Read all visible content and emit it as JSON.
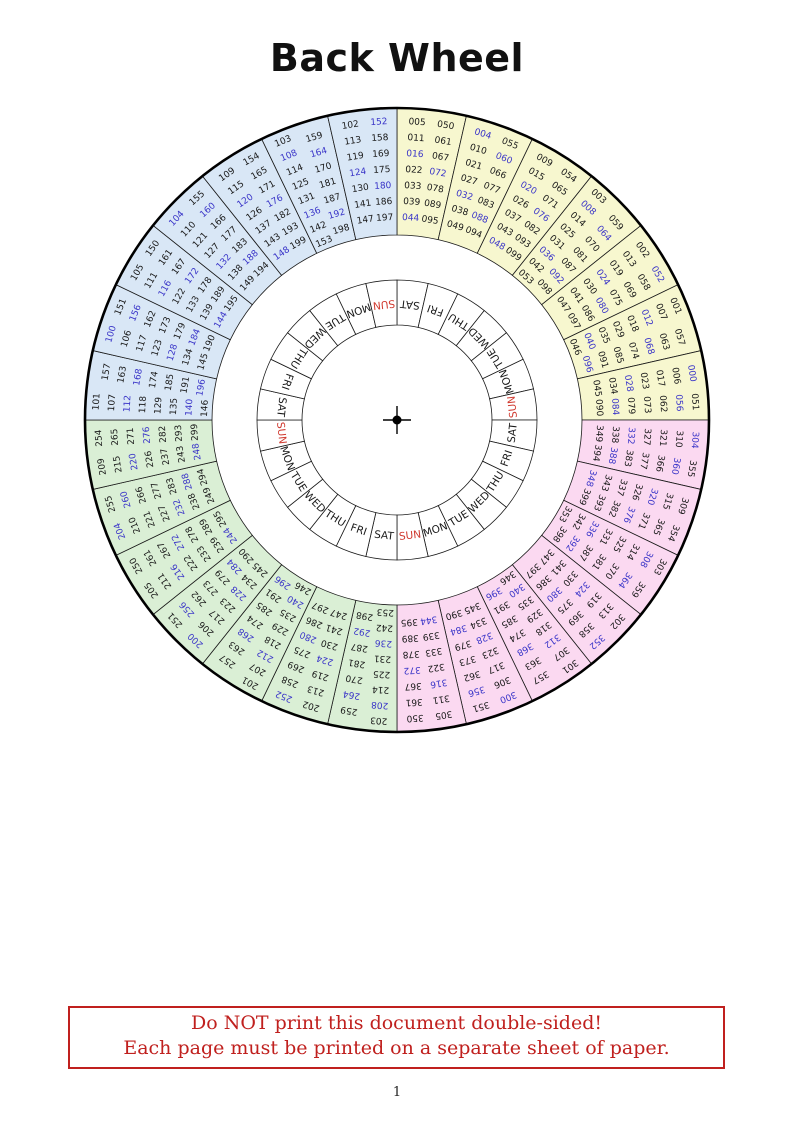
{
  "page": {
    "title": "Back Wheel",
    "page_number": "1"
  },
  "notice": {
    "line1": "Do NOT print this document double-sided!",
    "line2": "Each page must be printed on a separate sheet of paper.",
    "color": "#c0201e"
  },
  "wheel": {
    "quadrant_colors": {
      "yellow": "#f7f7cf",
      "pink": "#fbd9f1",
      "green": "#daefd5",
      "blue": "#d9e7f6"
    },
    "number_color": "#191919",
    "number_highlight": {
      "rule": "multiples-of-4",
      "color": "#3a35c8"
    },
    "day_color": "#191919",
    "red_day": "SUN",
    "red_day_color": "#d03a30",
    "days_clockwise_from_top": [
      "SAT",
      "FRI",
      "THU",
      "WED",
      "TUE",
      "MON",
      "SUN",
      "SAT",
      "FRI",
      "THU",
      "WED",
      "TUE",
      "MON",
      "SUN",
      "SAT",
      "FRI",
      "THU",
      "WED",
      "TUE",
      "MON",
      "SUN",
      "SAT",
      "FRI",
      "THU",
      "WED",
      "TUE",
      "MON",
      "SUN"
    ],
    "sectors": [
      {
        "q": "yellow",
        "a": [
          "005",
          "011",
          "016",
          "022",
          "033",
          "039",
          "044"
        ],
        "b": [
          "050",
          "061",
          "067",
          "072",
          "078",
          "089",
          "095"
        ]
      },
      {
        "q": "yellow",
        "a": [
          "004",
          "010",
          "021",
          "027",
          "032",
          "038",
          "049"
        ],
        "b": [
          "055",
          "060",
          "066",
          "077",
          "083",
          "088",
          "094"
        ]
      },
      {
        "q": "yellow",
        "a": [
          "009",
          "015",
          "020",
          "026",
          "037",
          "043",
          "048"
        ],
        "b": [
          "054",
          "065",
          "071",
          "076",
          "082",
          "093",
          "099"
        ]
      },
      {
        "q": "yellow",
        "a": [
          "003",
          "008",
          "014",
          "025",
          "031",
          "036",
          "042",
          "053"
        ],
        "b": [
          "059",
          "064",
          "070",
          "081",
          "087",
          "092",
          "098"
        ]
      },
      {
        "q": "yellow",
        "a": [
          "002",
          "013",
          "019",
          "024",
          "030",
          "041",
          "047"
        ],
        "b": [
          "052",
          "058",
          "069",
          "075",
          "080",
          "086",
          "097"
        ]
      },
      {
        "q": "yellow",
        "a": [
          "001",
          "007",
          "012",
          "018",
          "029",
          "035",
          "040",
          "046"
        ],
        "b": [
          "057",
          "063",
          "068",
          "074",
          "085",
          "091",
          "096"
        ]
      },
      {
        "q": "yellow",
        "a": [
          "000",
          "006",
          "017",
          "023",
          "028",
          "034",
          "045"
        ],
        "b": [
          "051",
          "056",
          "062",
          "073",
          "079",
          "084",
          "090"
        ]
      },
      {
        "q": "pink",
        "a": [
          "304",
          "310",
          "321",
          "327",
          "332",
          "338",
          "349"
        ],
        "b": [
          "355",
          "360",
          "366",
          "377",
          "383",
          "388",
          "394"
        ]
      },
      {
        "q": "pink",
        "a": [
          "309",
          "315",
          "320",
          "326",
          "337",
          "343",
          "348"
        ],
        "b": [
          "354",
          "365",
          "371",
          "376",
          "382",
          "393",
          "399"
        ]
      },
      {
        "q": "pink",
        "a": [
          "303",
          "308",
          "314",
          "325",
          "331",
          "336",
          "342",
          "353"
        ],
        "b": [
          "359",
          "364",
          "370",
          "381",
          "387",
          "392",
          "398"
        ]
      },
      {
        "q": "pink",
        "a": [
          "302",
          "313",
          "319",
          "324",
          "330",
          "341",
          "347"
        ],
        "b": [
          "352",
          "358",
          "369",
          "375",
          "380",
          "386",
          "397"
        ]
      },
      {
        "q": "pink",
        "a": [
          "301",
          "307",
          "312",
          "318",
          "329",
          "335",
          "340",
          "346"
        ],
        "b": [
          "357",
          "363",
          "368",
          "374",
          "385",
          "391",
          "396"
        ]
      },
      {
        "q": "pink",
        "a": [
          "300",
          "306",
          "317",
          "323",
          "328",
          "334",
          "345"
        ],
        "b": [
          "351",
          "356",
          "362",
          "373",
          "379",
          "384",
          "390"
        ]
      },
      {
        "q": "pink",
        "a": [
          "305",
          "311",
          "316",
          "322",
          "333",
          "339",
          "344"
        ],
        "b": [
          "350",
          "361",
          "367",
          "372",
          "378",
          "389",
          "395"
        ]
      },
      {
        "q": "green",
        "a": [
          "203",
          "208",
          "214",
          "225",
          "231",
          "236",
          "242",
          "253"
        ],
        "b": [
          "259",
          "264",
          "270",
          "281",
          "287",
          "292",
          "298"
        ]
      },
      {
        "q": "green",
        "a": [
          "202",
          "213",
          "219",
          "224",
          "230",
          "241",
          "247"
        ],
        "b": [
          "252",
          "258",
          "269",
          "275",
          "280",
          "286",
          "297"
        ]
      },
      {
        "q": "green",
        "a": [
          "201",
          "207",
          "212",
          "218",
          "229",
          "235",
          "240",
          "246"
        ],
        "b": [
          "257",
          "263",
          "268",
          "274",
          "285",
          "291",
          "296"
        ]
      },
      {
        "q": "green",
        "a": [
          "200",
          "206",
          "217",
          "223",
          "228",
          "234",
          "245"
        ],
        "b": [
          "251",
          "256",
          "262",
          "273",
          "279",
          "284",
          "290"
        ]
      },
      {
        "q": "green",
        "a": [
          "205",
          "211",
          "216",
          "222",
          "233",
          "239",
          "244"
        ],
        "b": [
          "250",
          "261",
          "267",
          "272",
          "278",
          "289",
          "295"
        ]
      },
      {
        "q": "green",
        "a": [
          "204",
          "210",
          "221",
          "227",
          "232",
          "238",
          "249"
        ],
        "b": [
          "255",
          "260",
          "266",
          "277",
          "283",
          "288",
          "294"
        ]
      },
      {
        "q": "green",
        "a": [
          "209",
          "215",
          "220",
          "226",
          "237",
          "243",
          "248"
        ],
        "b": [
          "254",
          "265",
          "271",
          "276",
          "282",
          "293",
          "299"
        ]
      },
      {
        "q": "blue",
        "a": [
          "101",
          "107",
          "112",
          "118",
          "129",
          "135",
          "140",
          "146"
        ],
        "b": [
          "157",
          "163",
          "168",
          "174",
          "185",
          "191",
          "196"
        ]
      },
      {
        "q": "blue",
        "a": [
          "100",
          "106",
          "117",
          "123",
          "128",
          "134",
          "145"
        ],
        "b": [
          "151",
          "156",
          "162",
          "173",
          "179",
          "184",
          "190"
        ]
      },
      {
        "q": "blue",
        "a": [
          "105",
          "111",
          "116",
          "122",
          "133",
          "139",
          "144"
        ],
        "b": [
          "150",
          "161",
          "167",
          "172",
          "178",
          "189",
          "195"
        ]
      },
      {
        "q": "blue",
        "a": [
          "104",
          "110",
          "121",
          "127",
          "132",
          "138",
          "149"
        ],
        "b": [
          "155",
          "160",
          "166",
          "177",
          "183",
          "188",
          "194"
        ]
      },
      {
        "q": "blue",
        "a": [
          "109",
          "115",
          "120",
          "126",
          "137",
          "143",
          "148"
        ],
        "b": [
          "154",
          "165",
          "171",
          "176",
          "182",
          "193",
          "199"
        ]
      },
      {
        "q": "blue",
        "a": [
          "103",
          "108",
          "114",
          "125",
          "131",
          "136",
          "142",
          "153"
        ],
        "b": [
          "159",
          "164",
          "170",
          "181",
          "187",
          "192",
          "198"
        ]
      },
      {
        "q": "blue",
        "a": [
          "102",
          "113",
          "119",
          "124",
          "130",
          "141",
          "147"
        ],
        "b": [
          "152",
          "158",
          "169",
          "175",
          "180",
          "186",
          "197"
        ]
      }
    ]
  }
}
